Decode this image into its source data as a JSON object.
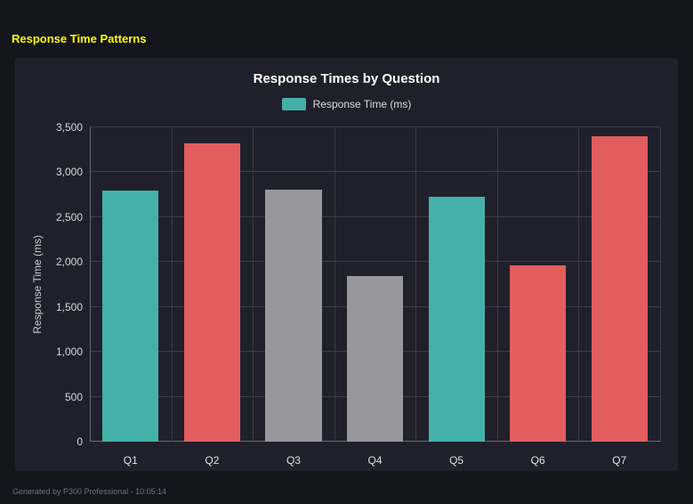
{
  "page": {
    "title": "Response Time Patterns",
    "footer": "Generated by P300 Professional - 10:05:14"
  },
  "chart_data": {
    "type": "bar",
    "title": "Response Times by Question",
    "legend": {
      "label": "Response Time (ms)",
      "color": "#44b1a8"
    },
    "categories": [
      "Q1",
      "Q2",
      "Q3",
      "Q4",
      "Q5",
      "Q6",
      "Q7"
    ],
    "values": [
      2800,
      3320,
      2810,
      1840,
      2730,
      1960,
      3400
    ],
    "bar_colors": [
      "#44b1a8",
      "#e25d5d",
      "#97979d",
      "#97979d",
      "#44b1a8",
      "#e25d5d",
      "#e25d5d"
    ],
    "ylabel": "Response Time (ms)",
    "ylim": [
      0,
      3500
    ],
    "ytick_step": 500,
    "grid": true,
    "legend_position": "top",
    "colors": {
      "teal": "#44b1a8",
      "red": "#e25d5d",
      "gray": "#97979d",
      "panel_bg": "#20202c",
      "page_bg": "#14141d",
      "heading_yellow": "#ffff00"
    }
  }
}
